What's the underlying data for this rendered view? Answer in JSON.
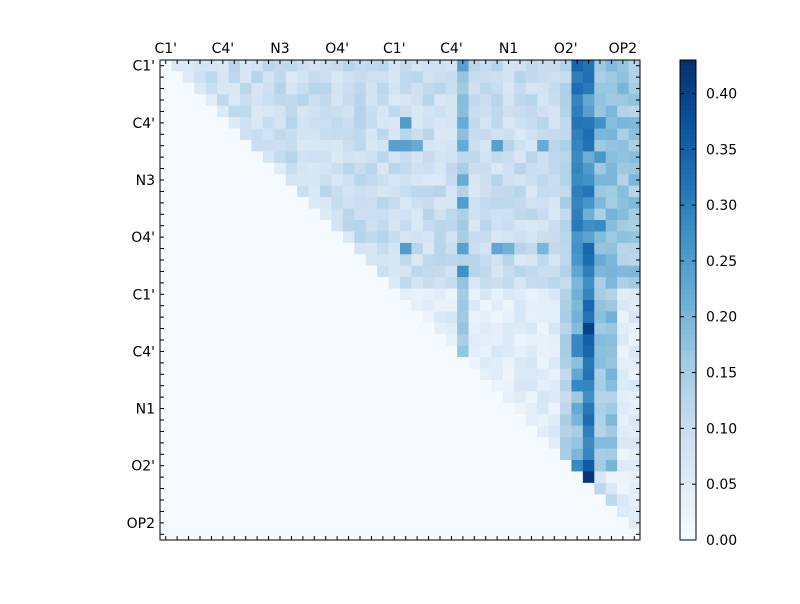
{
  "chart_data": {
    "type": "heatmap",
    "title": "",
    "n": 42,
    "x_tick_labels": [
      "C1'",
      "C4'",
      "N3",
      "O4'",
      "C1'",
      "C4'",
      "N1",
      "O2'",
      "OP2"
    ],
    "y_tick_labels": [
      "C1'",
      "C4'",
      "N3",
      "O4'",
      "C1'",
      "C4'",
      "N1",
      "O2'",
      "OP2"
    ],
    "x_tick_positions": [
      0,
      5,
      10,
      15,
      20,
      25,
      30,
      35,
      40
    ],
    "y_tick_positions": [
      0,
      5,
      10,
      15,
      20,
      25,
      30,
      35,
      40
    ],
    "colorbar": {
      "min": 0.0,
      "max": 0.43,
      "ticks": [
        0.0,
        0.05,
        0.1,
        0.15,
        0.2,
        0.25,
        0.3,
        0.35,
        0.4
      ],
      "tick_labels": [
        "0.00",
        "0.05",
        "0.10",
        "0.15",
        "0.20",
        "0.25",
        "0.30",
        "0.35",
        "0.40"
      ],
      "colormap": [
        "#f7fbff",
        "#deebf7",
        "#c6dbef",
        "#9ecae1",
        "#6baed6",
        "#4292c6",
        "#2171b5",
        "#08519c",
        "#08306b"
      ]
    },
    "upper_triangle_only": true,
    "bright_columns": {
      "26": 0.17,
      "35": 0.14,
      "36": 0.27,
      "37": 0.3,
      "38": 0.18,
      "39": 0.19
    },
    "spot_values": [
      [
        0,
        36,
        0.34
      ],
      [
        1,
        36,
        0.3
      ],
      [
        2,
        36,
        0.33
      ],
      [
        3,
        36,
        0.29
      ],
      [
        4,
        36,
        0.3
      ],
      [
        5,
        36,
        0.32
      ],
      [
        6,
        36,
        0.3
      ],
      [
        7,
        36,
        0.29
      ],
      [
        8,
        36,
        0.28
      ],
      [
        9,
        36,
        0.29
      ],
      [
        10,
        36,
        0.28
      ],
      [
        11,
        36,
        0.3
      ],
      [
        12,
        36,
        0.29
      ],
      [
        13,
        36,
        0.3
      ],
      [
        14,
        36,
        0.31
      ],
      [
        15,
        36,
        0.26
      ],
      [
        16,
        37,
        0.34
      ],
      [
        17,
        36,
        0.26
      ],
      [
        18,
        37,
        0.3
      ],
      [
        19,
        37,
        0.27
      ],
      [
        20,
        37,
        0.29
      ],
      [
        21,
        37,
        0.34
      ],
      [
        22,
        37,
        0.32
      ],
      [
        23,
        37,
        0.4
      ],
      [
        24,
        37,
        0.35
      ],
      [
        25,
        37,
        0.34
      ],
      [
        26,
        37,
        0.31
      ],
      [
        27,
        37,
        0.32
      ],
      [
        28,
        37,
        0.29
      ],
      [
        29,
        37,
        0.27
      ],
      [
        30,
        37,
        0.31
      ],
      [
        31,
        37,
        0.33
      ],
      [
        32,
        37,
        0.3
      ],
      [
        33,
        37,
        0.28
      ],
      [
        34,
        37,
        0.29
      ],
      [
        35,
        37,
        0.36
      ],
      [
        36,
        37,
        0.42
      ],
      [
        37,
        38,
        0.12
      ],
      [
        5,
        38,
        0.27
      ],
      [
        8,
        38,
        0.26
      ],
      [
        14,
        38,
        0.28
      ],
      [
        17,
        38,
        0.22
      ],
      [
        0,
        26,
        0.24
      ],
      [
        5,
        26,
        0.22
      ],
      [
        10,
        26,
        0.22
      ],
      [
        12,
        26,
        0.25
      ],
      [
        16,
        26,
        0.24
      ],
      [
        18,
        26,
        0.27
      ],
      [
        5,
        21,
        0.25
      ],
      [
        7,
        21,
        0.24
      ],
      [
        16,
        21,
        0.25
      ],
      [
        7,
        20,
        0.24
      ],
      [
        7,
        22,
        0.22
      ],
      [
        7,
        26,
        0.22
      ],
      [
        7,
        29,
        0.24
      ],
      [
        7,
        33,
        0.22
      ],
      [
        16,
        29,
        0.23
      ],
      [
        16,
        30,
        0.21
      ],
      [
        16,
        33,
        0.2
      ],
      [
        26,
        36,
        0.18
      ],
      [
        29,
        36,
        0.16
      ],
      [
        31,
        36,
        0.2
      ],
      [
        32,
        36,
        0.15
      ],
      [
        33,
        36,
        0.17
      ],
      [
        38,
        39,
        0.12
      ]
    ]
  }
}
